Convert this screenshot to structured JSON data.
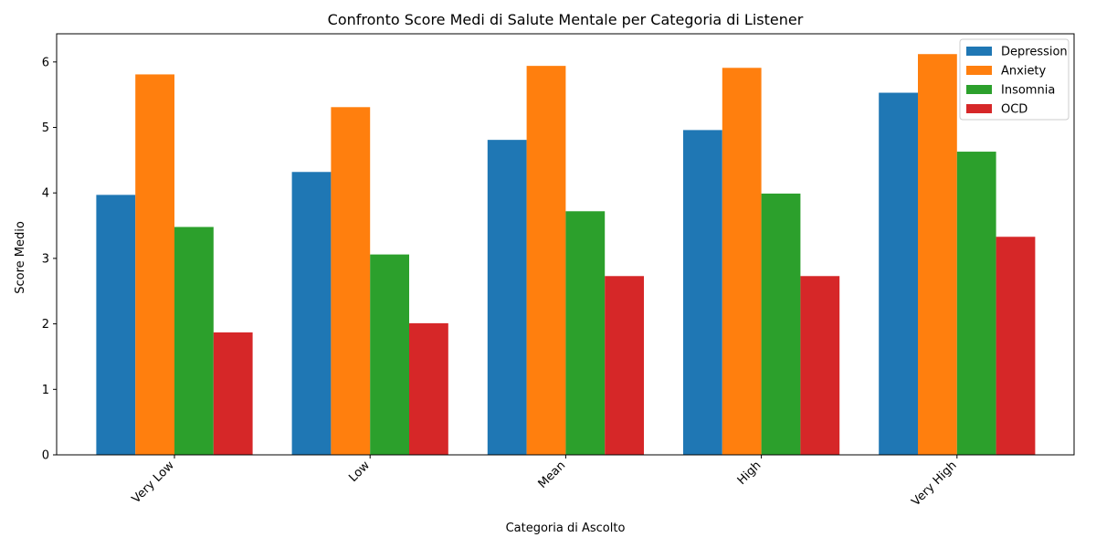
{
  "chart_data": {
    "type": "bar",
    "title": "Confronto Score Medi di Salute Mentale per Categoria di Listener",
    "xlabel": "Categoria di Ascolto",
    "ylabel": "Score Medio",
    "categories": [
      "Very Low",
      "Low",
      "Mean",
      "High",
      "Very High"
    ],
    "series": [
      {
        "name": "Depression",
        "color": "#1f77b4",
        "values": [
          3.97,
          4.32,
          4.81,
          4.96,
          5.53
        ]
      },
      {
        "name": "Anxiety",
        "color": "#ff7f0e",
        "values": [
          5.81,
          5.31,
          5.94,
          5.91,
          6.12
        ]
      },
      {
        "name": "Insomnia",
        "color": "#2ca02c",
        "values": [
          3.48,
          3.06,
          3.72,
          3.99,
          4.63
        ]
      },
      {
        "name": "OCD",
        "color": "#d62728",
        "values": [
          1.87,
          2.01,
          2.73,
          2.73,
          3.33
        ]
      }
    ],
    "yticks": [
      0,
      1,
      2,
      3,
      4,
      5,
      6
    ],
    "ylim": [
      0,
      6.43
    ],
    "grid": false,
    "legend_position": "top-right"
  }
}
